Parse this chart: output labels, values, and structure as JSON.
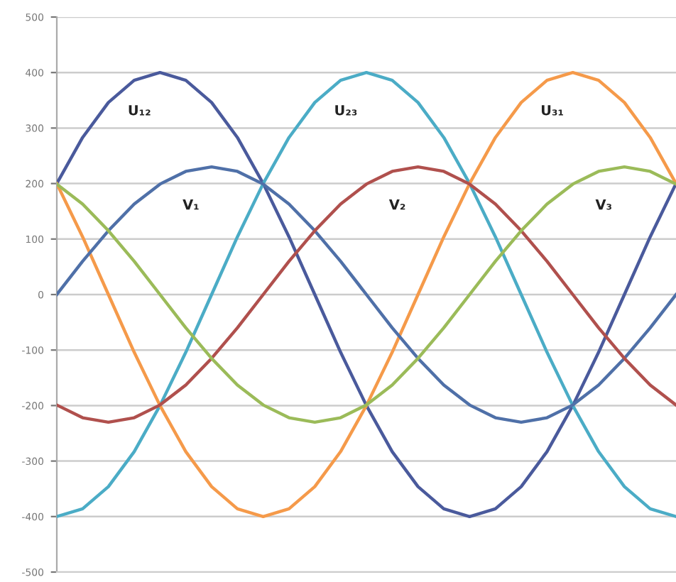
{
  "chart_data": {
    "type": "line",
    "categories": [
      null,
      null,
      null,
      null,
      null,
      null,
      null,
      null,
      null,
      null,
      null,
      null,
      null,
      null,
      null,
      null,
      null,
      null,
      null,
      null,
      null,
      null,
      null,
      null,
      null
    ],
    "series": [
      {
        "name": "U₁₂",
        "color": "#4a5a9c",
        "values": [
          200,
          283,
          346,
          386,
          400,
          386,
          346,
          283,
          200,
          104,
          0,
          -104,
          -200,
          -283,
          -346,
          -386,
          -400,
          -386,
          -346,
          -283,
          -200,
          -104,
          0,
          104,
          200
        ]
      },
      {
        "name": "U₂₃",
        "color": "#4bacc6",
        "values": [
          -400,
          -386,
          -346,
          -283,
          -200,
          -104,
          0,
          104,
          200,
          283,
          346,
          386,
          400,
          386,
          346,
          283,
          200,
          104,
          0,
          -104,
          -200,
          -283,
          -346,
          -386,
          -400
        ]
      },
      {
        "name": "U₃₁",
        "color": "#f59a4a",
        "values": [
          200,
          104,
          0,
          -104,
          -200,
          -283,
          -346,
          -386,
          -400,
          -386,
          -346,
          -283,
          -200,
          -104,
          0,
          104,
          200,
          283,
          346,
          386,
          400,
          386,
          346,
          283,
          200
        ]
      },
      {
        "name": "V₁",
        "color": "#4f70a8",
        "values": [
          0,
          60,
          115,
          163,
          199,
          222,
          230,
          222,
          199,
          163,
          115,
          60,
          0,
          -60,
          -115,
          -163,
          -199,
          -222,
          -230,
          -222,
          -199,
          -163,
          -115,
          -60,
          0
        ]
      },
      {
        "name": "V₂",
        "color": "#b0504d",
        "values": [
          -199,
          -222,
          -230,
          -222,
          -199,
          -163,
          -115,
          -60,
          0,
          60,
          115,
          163,
          199,
          222,
          230,
          222,
          199,
          163,
          115,
          60,
          0,
          -60,
          -115,
          -163,
          -199
        ]
      },
      {
        "name": "V₃",
        "color": "#9bbb59",
        "values": [
          199,
          163,
          115,
          60,
          0,
          -60,
          -115,
          -163,
          -199,
          -222,
          -230,
          -222,
          -199,
          -163,
          -115,
          -60,
          0,
          60,
          115,
          163,
          199,
          222,
          230,
          222,
          199
        ]
      }
    ],
    "ylim": [
      -500,
      500
    ],
    "yticks": [
      500,
      400,
      300,
      200,
      100,
      0,
      -100,
      -200,
      -300,
      -400,
      -500
    ],
    "grid": "y",
    "tick_labels": "y",
    "marker": "none",
    "line_style": "solid"
  }
}
